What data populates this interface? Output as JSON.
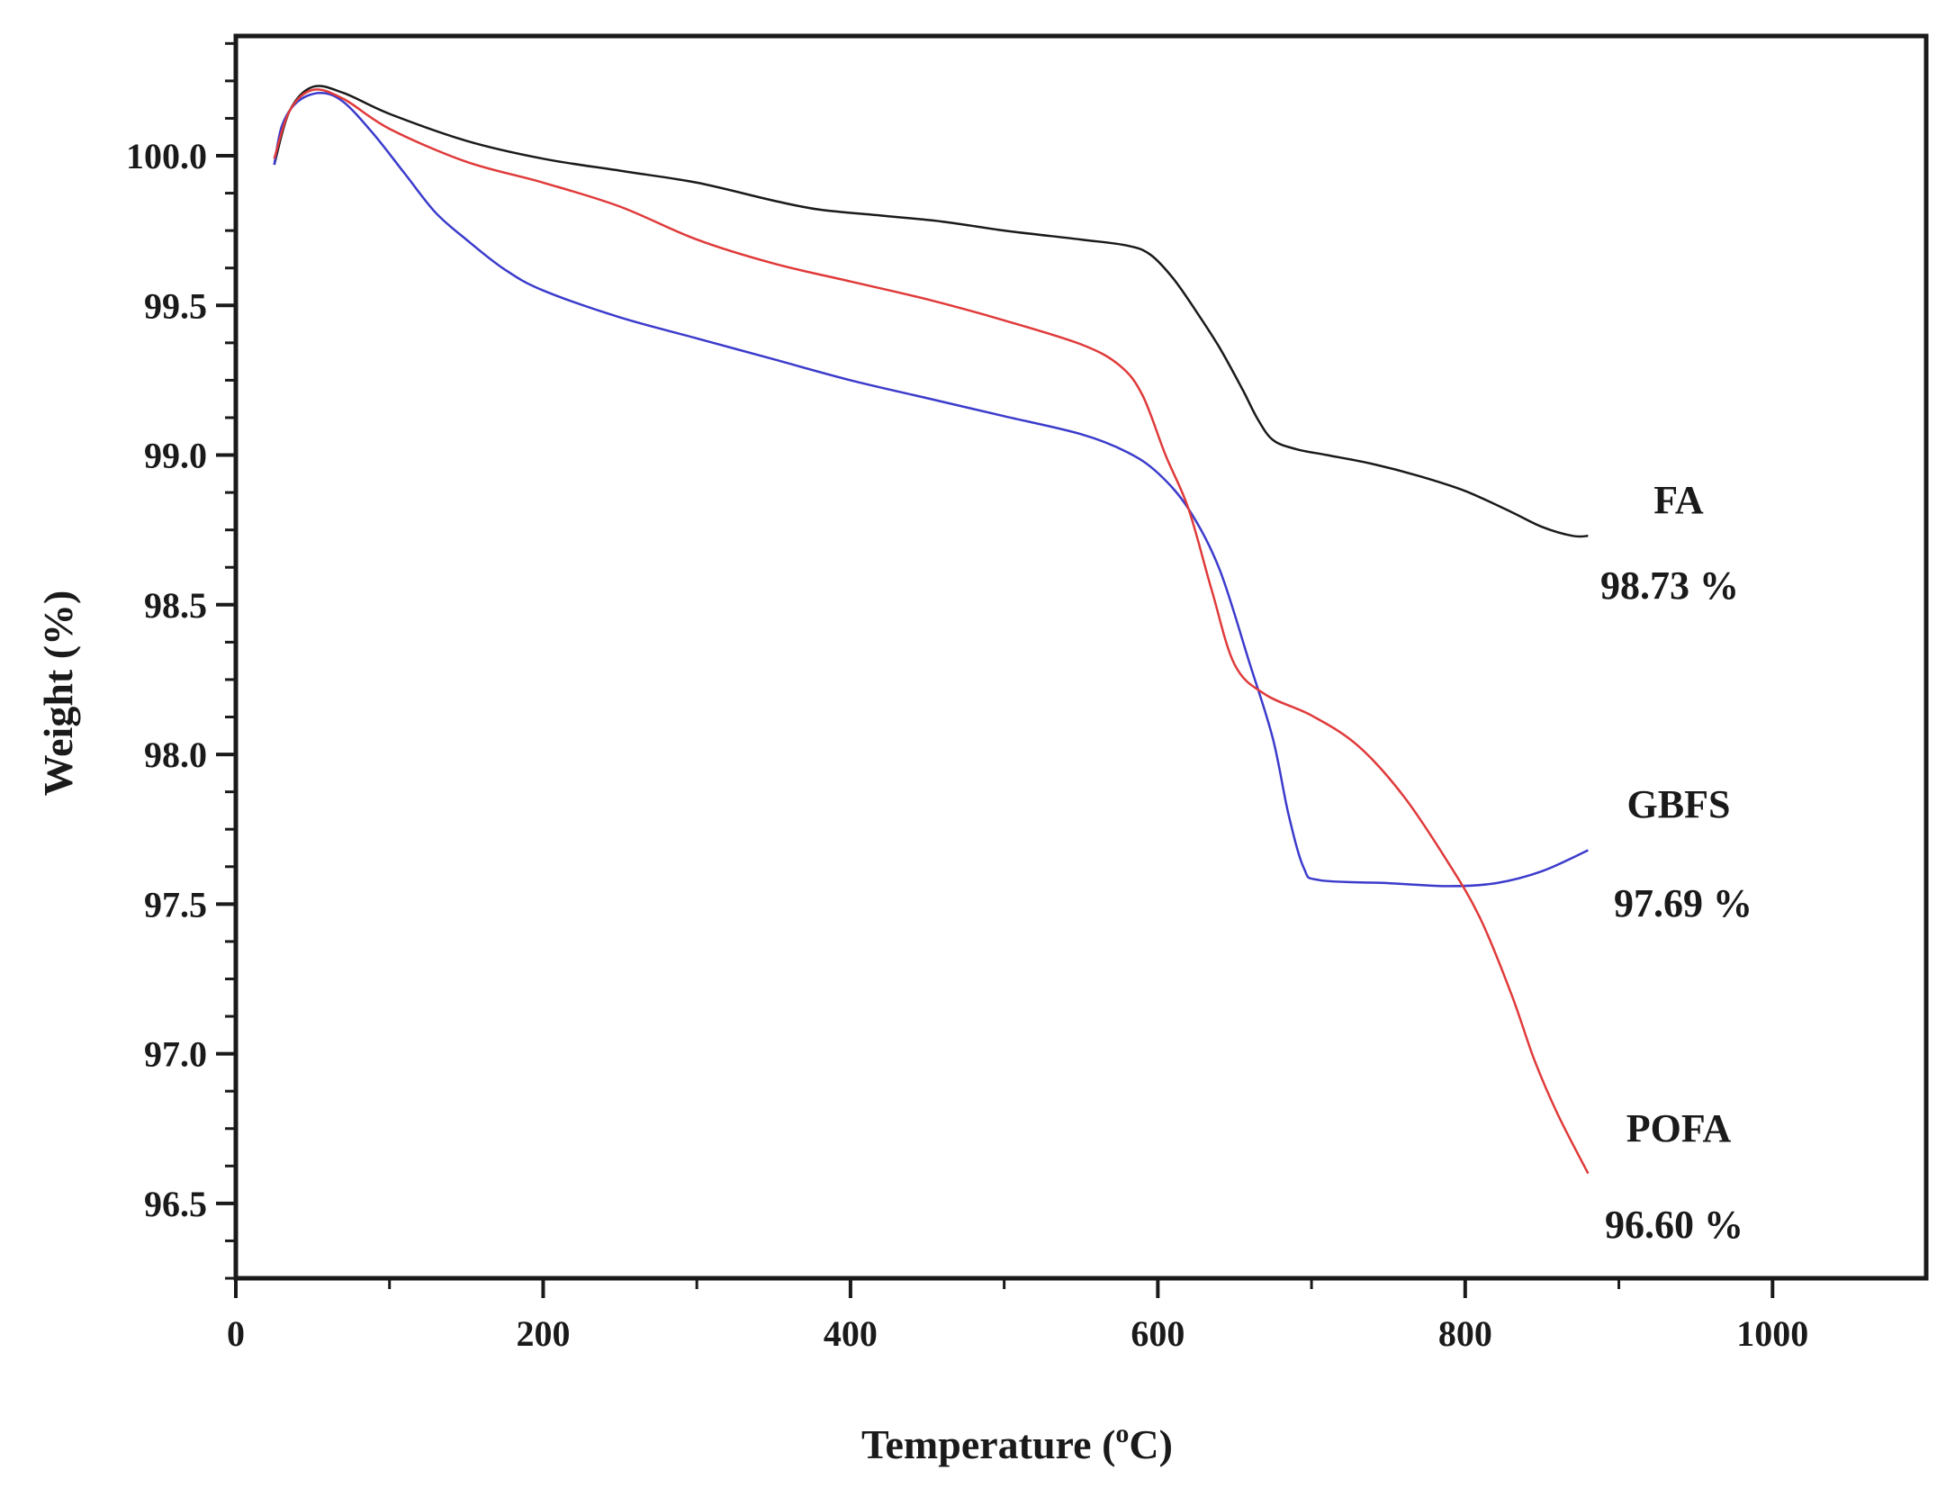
{
  "chart_data": {
    "type": "line",
    "title": "",
    "xlabel": "Temperature",
    "xlabel_unit": "C",
    "xlabel_unit_sup": "o",
    "ylabel": "Weight (%)",
    "xlim": [
      0,
      1100
    ],
    "ylim": [
      96.25,
      100.4
    ],
    "x_ticks": [
      0,
      200,
      400,
      600,
      800,
      1000
    ],
    "x_tick_labels": [
      "0",
      "200",
      "400",
      "600",
      "800",
      "1000"
    ],
    "y_ticks": [
      96.5,
      97.0,
      97.5,
      98.0,
      98.5,
      99.0,
      99.5,
      100.0
    ],
    "y_tick_labels": [
      "96.5",
      "97.0",
      "97.5",
      "98.0",
      "98.5",
      "99.0",
      "99.5",
      "100.0"
    ],
    "grid": false,
    "legend": "none",
    "series": [
      {
        "name": "FA",
        "end_label": "98.73 %",
        "color": "#1a1a1a",
        "points": [
          [
            25,
            99.97
          ],
          [
            35,
            100.15
          ],
          [
            50,
            100.23
          ],
          [
            70,
            100.21
          ],
          [
            100,
            100.14
          ],
          [
            150,
            100.05
          ],
          [
            200,
            99.99
          ],
          [
            250,
            99.95
          ],
          [
            300,
            99.91
          ],
          [
            350,
            99.85
          ],
          [
            380,
            99.82
          ],
          [
            420,
            99.8
          ],
          [
            460,
            99.78
          ],
          [
            500,
            99.75
          ],
          [
            550,
            99.72
          ],
          [
            580,
            99.7
          ],
          [
            595,
            99.67
          ],
          [
            610,
            99.59
          ],
          [
            625,
            99.48
          ],
          [
            640,
            99.36
          ],
          [
            655,
            99.22
          ],
          [
            665,
            99.12
          ],
          [
            675,
            99.05
          ],
          [
            690,
            99.02
          ],
          [
            710,
            99.0
          ],
          [
            740,
            98.97
          ],
          [
            770,
            98.93
          ],
          [
            800,
            98.88
          ],
          [
            830,
            98.81
          ],
          [
            850,
            98.76
          ],
          [
            870,
            98.73
          ],
          [
            880,
            98.73
          ]
        ]
      },
      {
        "name": "GBFS",
        "end_label": "97.69 %",
        "color": "#3b3bcc",
        "points": [
          [
            25,
            99.97
          ],
          [
            30,
            100.1
          ],
          [
            40,
            100.18
          ],
          [
            55,
            100.21
          ],
          [
            70,
            100.18
          ],
          [
            90,
            100.07
          ],
          [
            110,
            99.94
          ],
          [
            130,
            99.81
          ],
          [
            150,
            99.72
          ],
          [
            175,
            99.62
          ],
          [
            200,
            99.55
          ],
          [
            250,
            99.46
          ],
          [
            300,
            99.39
          ],
          [
            350,
            99.32
          ],
          [
            400,
            99.25
          ],
          [
            450,
            99.19
          ],
          [
            500,
            99.13
          ],
          [
            550,
            99.07
          ],
          [
            580,
            99.01
          ],
          [
            600,
            98.94
          ],
          [
            620,
            98.82
          ],
          [
            640,
            98.62
          ],
          [
            660,
            98.3
          ],
          [
            675,
            98.05
          ],
          [
            685,
            97.8
          ],
          [
            695,
            97.62
          ],
          [
            705,
            97.58
          ],
          [
            750,
            97.57
          ],
          [
            790,
            97.56
          ],
          [
            820,
            97.57
          ],
          [
            850,
            97.61
          ],
          [
            880,
            97.68
          ]
        ]
      },
      {
        "name": "POFA",
        "end_label": "96.60 %",
        "color": "#e03a3a",
        "points": [
          [
            25,
            99.99
          ],
          [
            35,
            100.15
          ],
          [
            50,
            100.22
          ],
          [
            70,
            100.19
          ],
          [
            100,
            100.09
          ],
          [
            150,
            99.98
          ],
          [
            200,
            99.91
          ],
          [
            250,
            99.83
          ],
          [
            300,
            99.72
          ],
          [
            350,
            99.64
          ],
          [
            400,
            99.58
          ],
          [
            450,
            99.52
          ],
          [
            500,
            99.45
          ],
          [
            550,
            99.37
          ],
          [
            575,
            99.3
          ],
          [
            590,
            99.2
          ],
          [
            605,
            99.0
          ],
          [
            620,
            98.82
          ],
          [
            635,
            98.55
          ],
          [
            650,
            98.3
          ],
          [
            670,
            98.2
          ],
          [
            700,
            98.13
          ],
          [
            730,
            98.03
          ],
          [
            760,
            97.86
          ],
          [
            790,
            97.63
          ],
          [
            810,
            97.45
          ],
          [
            830,
            97.2
          ],
          [
            845,
            96.98
          ],
          [
            860,
            96.8
          ],
          [
            880,
            96.6
          ]
        ]
      }
    ]
  }
}
